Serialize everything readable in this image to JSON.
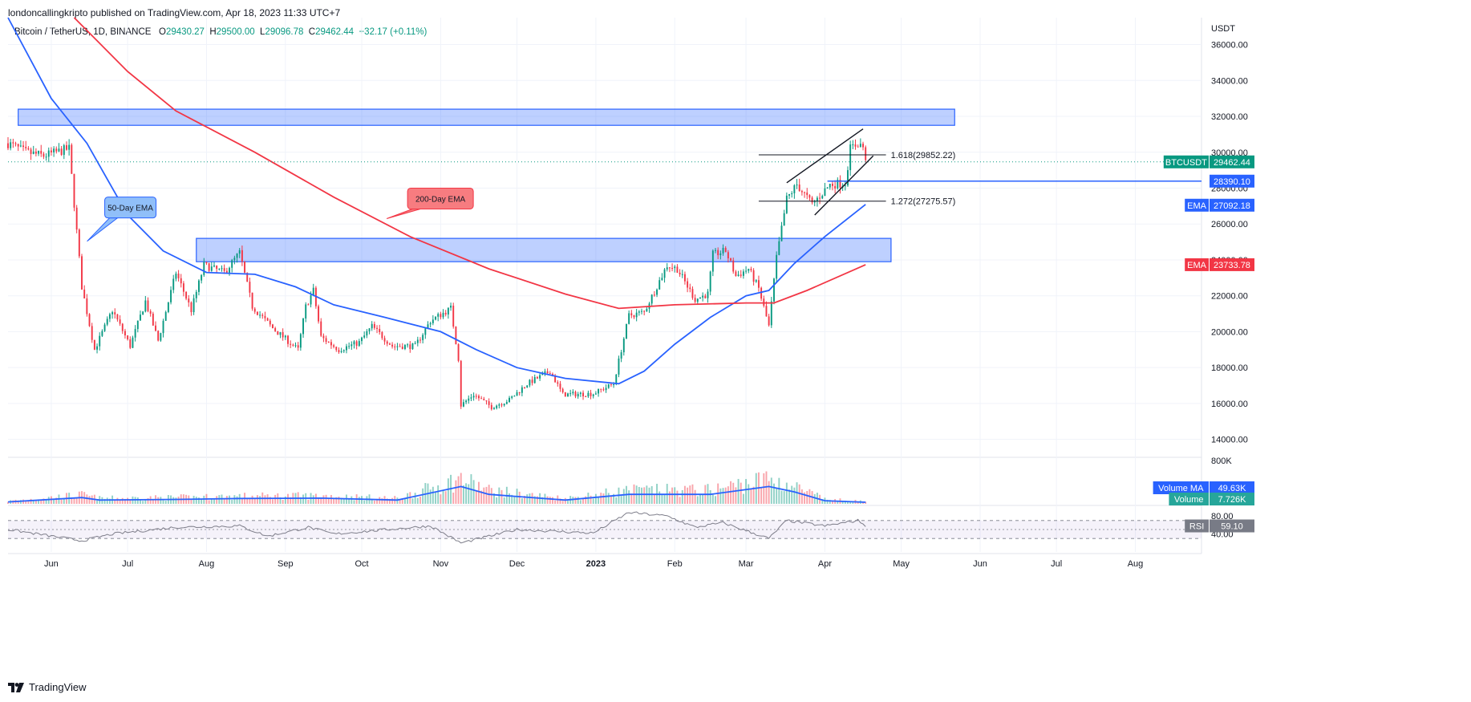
{
  "header": {
    "published_line": "londoncallingkripto published on TradingView.com, Apr 18, 2023 11:33 UTC+7",
    "symbol_line": "Bitcoin / TetherUS, 1D, BINANCE",
    "open_label": "O",
    "open": "29430.27",
    "high_label": "H",
    "high": "29500.00",
    "low_label": "L",
    "low": "29096.78",
    "close_label": "C",
    "close": "29462.44",
    "change": "+32.17 (+0.11%)"
  },
  "footer": {
    "brand": "TradingView"
  },
  "colors": {
    "up": "#089981",
    "down": "#f23645",
    "ema50": "#2962ff",
    "ema200": "#f23645",
    "zone_fill": "#2962ff",
    "rsi_band": "#7e57c2",
    "grid": "#f0f3fa",
    "text": "#131722"
  },
  "chart_data": {
    "type": "candlestick",
    "currency_label": "USDT",
    "y_ticks": [
      "36000.00",
      "34000.00",
      "32000.00",
      "30000.00",
      "28000.00",
      "26000.00",
      "24000.00",
      "22000.00",
      "20000.00",
      "18000.00",
      "16000.00",
      "14000.00"
    ],
    "ylim": [
      13000,
      37500
    ],
    "x_ticks": [
      "Jun",
      "Jul",
      "Aug",
      "Sep",
      "Oct",
      "Nov",
      "Dec",
      "2023",
      "Feb",
      "Mar",
      "Apr",
      "May",
      "Jun",
      "Jul",
      "Aug"
    ],
    "x_tick_dates": [
      "2022-06-01",
      "2022-07-01",
      "2022-08-01",
      "2022-09-01",
      "2022-10-01",
      "2022-11-01",
      "2022-12-01",
      "2023-01-01",
      "2023-02-01",
      "2023-03-01",
      "2023-04-01",
      "2023-05-01",
      "2023-06-01",
      "2023-07-01",
      "2023-08-01"
    ],
    "xlim": [
      "2022-05-15",
      "2023-08-27"
    ],
    "price_keypoints": [
      [
        "2022-05-15",
        30500
      ],
      [
        "2022-05-22",
        30000
      ],
      [
        "2022-05-29",
        29800
      ],
      [
        "2022-06-03",
        30000
      ],
      [
        "2022-06-08",
        30200
      ],
      [
        "2022-06-13",
        22500
      ],
      [
        "2022-06-18",
        19000
      ],
      [
        "2022-06-25",
        21200
      ],
      [
        "2022-07-02",
        19200
      ],
      [
        "2022-07-08",
        21700
      ],
      [
        "2022-07-13",
        19500
      ],
      [
        "2022-07-20",
        23300
      ],
      [
        "2022-07-26",
        21200
      ],
      [
        "2022-07-31",
        23700
      ],
      [
        "2022-08-08",
        23300
      ],
      [
        "2022-08-14",
        24400
      ],
      [
        "2022-08-19",
        21400
      ],
      [
        "2022-08-27",
        20200
      ],
      [
        "2022-09-06",
        19000
      ],
      [
        "2022-09-09",
        21400
      ],
      [
        "2022-09-12",
        22300
      ],
      [
        "2022-09-15",
        19700
      ],
      [
        "2022-09-22",
        19000
      ],
      [
        "2022-09-30",
        19400
      ],
      [
        "2022-10-05",
        20300
      ],
      [
        "2022-10-13",
        19200
      ],
      [
        "2022-10-22",
        19200
      ],
      [
        "2022-10-28",
        20600
      ],
      [
        "2022-11-05",
        21300
      ],
      [
        "2022-11-08",
        18500
      ],
      [
        "2022-11-09",
        15900
      ],
      [
        "2022-11-14",
        16500
      ],
      [
        "2022-11-21",
        15800
      ],
      [
        "2022-11-28",
        16200
      ],
      [
        "2022-12-05",
        17100
      ],
      [
        "2022-12-14",
        17800
      ],
      [
        "2022-12-19",
        16500
      ],
      [
        "2022-12-31",
        16550
      ],
      [
        "2023-01-08",
        17100
      ],
      [
        "2023-01-14",
        20900
      ],
      [
        "2023-01-20",
        21100
      ],
      [
        "2023-01-29",
        23700
      ],
      [
        "2023-02-02",
        23500
      ],
      [
        "2023-02-09",
        21800
      ],
      [
        "2023-02-14",
        22100
      ],
      [
        "2023-02-16",
        24300
      ],
      [
        "2023-02-21",
        24500
      ],
      [
        "2023-02-25",
        23100
      ],
      [
        "2023-03-02",
        23500
      ],
      [
        "2023-03-06",
        22400
      ],
      [
        "2023-03-10",
        20300
      ],
      [
        "2023-03-13",
        24100
      ],
      [
        "2023-03-17",
        27400
      ],
      [
        "2023-03-21",
        28200
      ],
      [
        "2023-03-27",
        27100
      ],
      [
        "2023-04-03",
        28200
      ],
      [
        "2023-04-09",
        28300
      ],
      [
        "2023-04-11",
        30200
      ],
      [
        "2023-04-14",
        30500
      ],
      [
        "2023-04-16",
        30300
      ],
      [
        "2023-04-17",
        29400
      ]
    ],
    "volume_keypoints": [
      [
        "2022-05-15",
        0.06
      ],
      [
        "2022-06-13",
        0.2
      ],
      [
        "2022-06-20",
        0.12
      ],
      [
        "2022-07-20",
        0.14
      ],
      [
        "2022-08-15",
        0.17
      ],
      [
        "2022-09-15",
        0.18
      ],
      [
        "2022-10-15",
        0.12
      ],
      [
        "2022-11-09",
        0.55
      ],
      [
        "2022-11-20",
        0.3
      ],
      [
        "2022-12-20",
        0.12
      ],
      [
        "2023-01-14",
        0.3
      ],
      [
        "2023-02-15",
        0.3
      ],
      [
        "2023-03-10",
        0.55
      ],
      [
        "2023-03-20",
        0.38
      ],
      [
        "2023-04-01",
        0.1
      ],
      [
        "2023-04-17",
        0.05
      ]
    ],
    "volume_axis_label": "800K",
    "rsi_ticks": [
      "80.00",
      "40.00"
    ],
    "series": [
      {
        "name": "Volume MA",
        "value": "49.63K"
      },
      {
        "name": "Volume",
        "value": "7.726K"
      },
      {
        "name": "RSI",
        "value": "59.10"
      },
      {
        "name": "EMA",
        "value": "27092.18"
      },
      {
        "name": "EMA",
        "value": "23733.78"
      }
    ],
    "ema50_keypoints": [
      [
        "2022-05-15",
        37500
      ],
      [
        "2022-06-01",
        33000
      ],
      [
        "2022-06-15",
        30500
      ],
      [
        "2022-07-01",
        26500
      ],
      [
        "2022-07-15",
        24500
      ],
      [
        "2022-08-01",
        23300
      ],
      [
        "2022-08-20",
        23200
      ],
      [
        "2022-09-05",
        22500
      ],
      [
        "2022-09-20",
        21500
      ],
      [
        "2022-10-10",
        20800
      ],
      [
        "2022-11-01",
        20000
      ],
      [
        "2022-11-15",
        19000
      ],
      [
        "2022-12-01",
        18000
      ],
      [
        "2022-12-20",
        17400
      ],
      [
        "2023-01-10",
        17100
      ],
      [
        "2023-01-20",
        17800
      ],
      [
        "2023-02-01",
        19300
      ],
      [
        "2023-02-15",
        20800
      ],
      [
        "2023-03-01",
        22000
      ],
      [
        "2023-03-10",
        22300
      ],
      [
        "2023-03-20",
        23800
      ],
      [
        "2023-04-01",
        25300
      ],
      [
        "2023-04-17",
        27092
      ]
    ],
    "ema200_keypoints": [
      [
        "2022-06-10",
        37500
      ],
      [
        "2022-07-01",
        34500
      ],
      [
        "2022-07-20",
        32300
      ],
      [
        "2022-08-20",
        30000
      ],
      [
        "2022-09-20",
        27500
      ],
      [
        "2022-10-20",
        25300
      ],
      [
        "2022-11-20",
        23500
      ],
      [
        "2022-12-20",
        22100
      ],
      [
        "2023-01-10",
        21300
      ],
      [
        "2023-02-01",
        21500
      ],
      [
        "2023-03-01",
        21600
      ],
      [
        "2023-03-12",
        21600
      ],
      [
        "2023-03-25",
        22300
      ],
      [
        "2023-04-17",
        23734
      ]
    ],
    "rsi_keypoints": [
      [
        "2022-05-15",
        50
      ],
      [
        "2022-06-13",
        25
      ],
      [
        "2022-06-25",
        40
      ],
      [
        "2022-07-20",
        55
      ],
      [
        "2022-08-14",
        58
      ],
      [
        "2022-08-25",
        35
      ],
      [
        "2022-09-10",
        55
      ],
      [
        "2022-09-20",
        40
      ],
      [
        "2022-10-28",
        58
      ],
      [
        "2022-11-09",
        20
      ],
      [
        "2022-12-01",
        50
      ],
      [
        "2022-12-31",
        42
      ],
      [
        "2023-01-14",
        88
      ],
      [
        "2023-01-29",
        80
      ],
      [
        "2023-02-09",
        55
      ],
      [
        "2023-02-20",
        65
      ],
      [
        "2023-03-10",
        30
      ],
      [
        "2023-03-17",
        70
      ],
      [
        "2023-04-01",
        58
      ],
      [
        "2023-04-14",
        70
      ],
      [
        "2023-04-17",
        59
      ]
    ],
    "zones": [
      {
        "from": "2022-05-19",
        "to": "2023-05-22",
        "low": 31500,
        "high": 32400
      },
      {
        "from": "2022-07-28",
        "to": "2023-04-27",
        "low": 23900,
        "high": 25200
      }
    ],
    "fib_lines": [
      {
        "label": "1.618(29852.22)",
        "value": 29852.22,
        "from": "2023-03-06",
        "to": "2023-04-25"
      },
      {
        "label": "1.272(27275.57)",
        "value": 27275.57,
        "from": "2023-03-06",
        "to": "2023-04-25"
      }
    ],
    "support_line": {
      "value": 28390.1,
      "from": "2023-04-02"
    },
    "channel": [
      {
        "from": [
          "2023-03-17",
          28300
        ],
        "to": [
          "2023-04-16",
          31300
        ]
      },
      {
        "from": [
          "2023-03-28",
          26500
        ],
        "to": [
          "2023-04-20",
          29800
        ]
      }
    ],
    "callouts": [
      {
        "label": "50-Day EMA",
        "date": "2022-06-22",
        "price": 27500
      },
      {
        "label": "200-Day EMA",
        "date": "2022-10-19",
        "price": 28000
      }
    ],
    "price_tags": [
      {
        "name": "BTCUSDT",
        "value": "29462.44",
        "price": 29462.44,
        "color": "#089981"
      },
      {
        "name": "",
        "value": "28390.10",
        "price": 28390.1,
        "color": "#2962ff"
      },
      {
        "name": "EMA",
        "value": "27092.18",
        "price": 27092.18,
        "color": "#2962ff"
      },
      {
        "name": "EMA",
        "value": "23733.78",
        "price": 23733.78,
        "color": "#f23645"
      }
    ]
  }
}
